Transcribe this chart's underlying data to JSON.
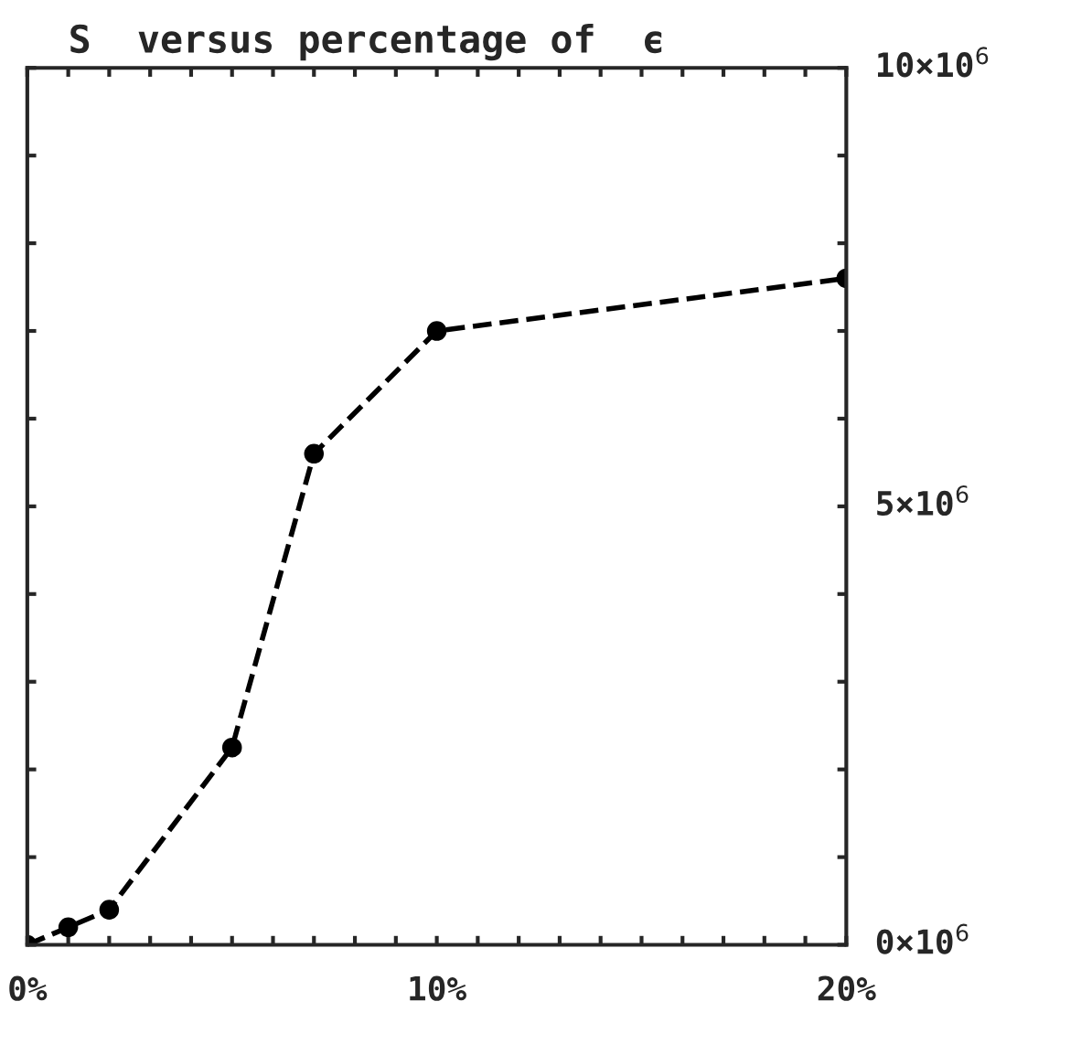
{
  "chart_data": {
    "type": "line",
    "title": "S  versus percentage of  ϵ",
    "x": [
      0,
      1,
      2,
      5,
      7,
      10,
      20
    ],
    "series": [
      {
        "color": "#000000",
        "values": [
          0,
          200000,
          400000,
          2250000,
          5600000,
          7000000,
          7600000
        ]
      }
    ],
    "xlim": [
      0,
      20
    ],
    "ylim": [
      0,
      10000000
    ],
    "xticks": [
      {
        "value": 0,
        "label": "0%"
      },
      {
        "value": 1,
        "label": null
      },
      {
        "value": 2,
        "label": null
      },
      {
        "value": 3,
        "label": null
      },
      {
        "value": 4,
        "label": null
      },
      {
        "value": 5,
        "label": null
      },
      {
        "value": 6,
        "label": null
      },
      {
        "value": 7,
        "label": null
      },
      {
        "value": 8,
        "label": null
      },
      {
        "value": 9,
        "label": null
      },
      {
        "value": 10,
        "label": "10%"
      },
      {
        "value": 11,
        "label": null
      },
      {
        "value": 12,
        "label": null
      },
      {
        "value": 13,
        "label": null
      },
      {
        "value": 14,
        "label": null
      },
      {
        "value": 15,
        "label": null
      },
      {
        "value": 16,
        "label": null
      },
      {
        "value": 17,
        "label": null
      },
      {
        "value": 18,
        "label": null
      },
      {
        "value": 19,
        "label": null
      },
      {
        "value": 20,
        "label": "20%"
      }
    ],
    "yticks": [
      {
        "value": 0,
        "label": "0×10$^{6}$"
      },
      {
        "value": 1000000,
        "label": null
      },
      {
        "value": 2000000,
        "label": null
      },
      {
        "value": 3000000,
        "label": null
      },
      {
        "value": 4000000,
        "label": null
      },
      {
        "value": 5000000,
        "label": "5×10$^{6}$"
      },
      {
        "value": 6000000,
        "label": null
      },
      {
        "value": 7000000,
        "label": null
      },
      {
        "value": 8000000,
        "label": null
      },
      {
        "value": 9000000,
        "label": null
      },
      {
        "value": 10000000,
        "label": "10×10$^{6}$"
      }
    ],
    "marker": "circle",
    "line_style": "dashed",
    "grid": false,
    "legend": false
  }
}
